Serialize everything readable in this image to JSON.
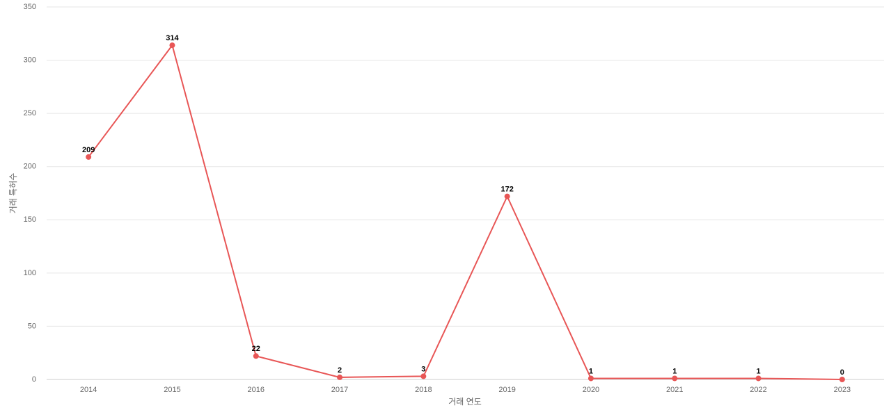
{
  "chart_data": {
    "type": "line",
    "x_label": "거래 연도",
    "y_label": "거래 특허수",
    "categories": [
      "2014",
      "2015",
      "2016",
      "2017",
      "2018",
      "2019",
      "2020",
      "2021",
      "2022",
      "2023"
    ],
    "values": [
      209,
      314,
      22,
      2,
      3,
      172,
      1,
      1,
      1,
      0
    ],
    "color": "#e85656",
    "ylim": [
      0,
      350
    ],
    "yticks": [
      0,
      50,
      100,
      150,
      200,
      250,
      300,
      350
    ],
    "grid": true
  }
}
